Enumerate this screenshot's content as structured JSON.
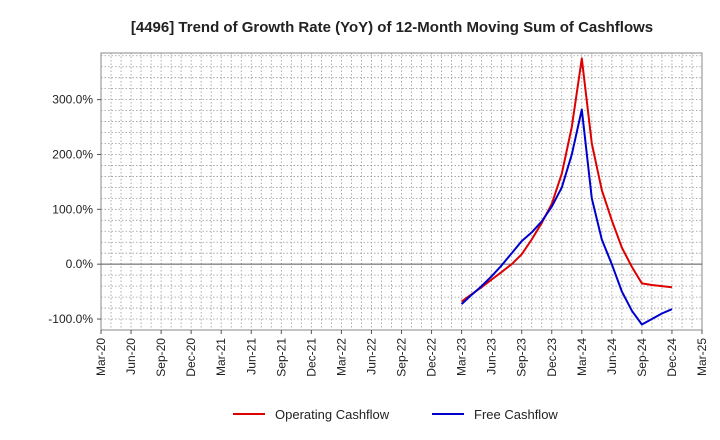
{
  "chart_data": {
    "type": "line",
    "title": "[4496]  Trend of Growth Rate (YoY) of 12-Month Moving Sum of Cashflows",
    "xlabel": "",
    "ylabel": "",
    "x_tick_labels": [
      "Mar-20",
      "Jun-20",
      "Sep-20",
      "Dec-20",
      "Mar-21",
      "Jun-21",
      "Sep-21",
      "Dec-21",
      "Mar-22",
      "Jun-22",
      "Sep-22",
      "Dec-22",
      "Mar-23",
      "Jun-23",
      "Sep-23",
      "Dec-23",
      "Mar-24",
      "Jun-24",
      "Sep-24",
      "Dec-24",
      "Mar-25"
    ],
    "y_tick_labels": [
      "-100.0%",
      "0.0%",
      "100.0%",
      "200.0%",
      "300.0%"
    ],
    "y_ticks": [
      -100,
      0,
      100,
      200,
      300
    ],
    "ylim": [
      -120,
      385
    ],
    "x_range": [
      "Mar-20",
      "Mar-25"
    ],
    "grid": true,
    "legend_position": "bottom",
    "x": [
      "Mar-23",
      "Apr-23",
      "May-23",
      "Jun-23",
      "Jul-23",
      "Aug-23",
      "Sep-23",
      "Oct-23",
      "Nov-23",
      "Dec-23",
      "Jan-24",
      "Feb-24",
      "Mar-24",
      "Apr-24",
      "May-24",
      "Jun-24",
      "Jul-24",
      "Aug-24",
      "Sep-24",
      "Oct-24",
      "Nov-24",
      "Dec-24"
    ],
    "series": [
      {
        "name": "Operating Cashflow",
        "color": "#dd0000",
        "values": [
          -68,
          -55,
          -42,
          -28,
          -14,
          0,
          18,
          45,
          75,
          110,
          165,
          250,
          375,
          220,
          135,
          80,
          30,
          -5,
          -35,
          -38,
          -40,
          -42
        ]
      },
      {
        "name": "Free Cashflow",
        "color": "#0000cc",
        "values": [
          -73,
          -56,
          -40,
          -22,
          -2,
          20,
          42,
          58,
          78,
          105,
          140,
          200,
          282,
          120,
          45,
          0,
          -50,
          -85,
          -110,
          -100,
          -90,
          -82
        ]
      }
    ]
  }
}
